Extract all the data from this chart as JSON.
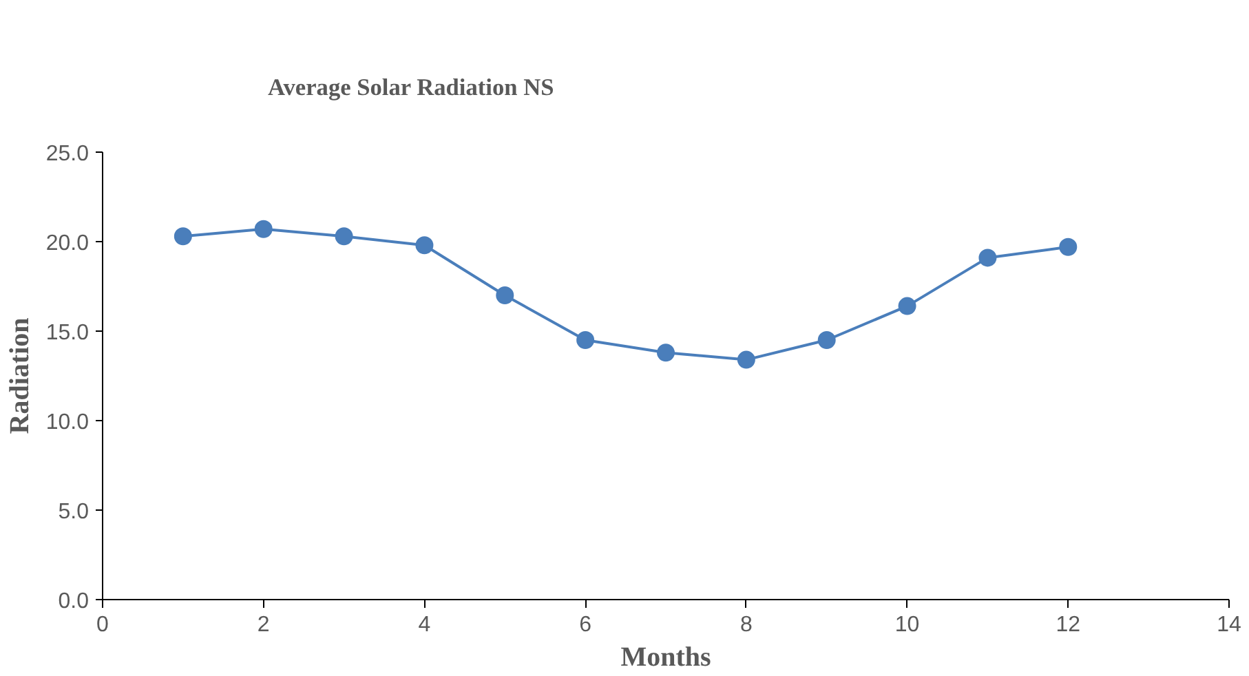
{
  "chart_data": {
    "type": "line",
    "title": "Average Solar Radiation NS",
    "xlabel": "Months",
    "ylabel": "Radiation",
    "x": [
      1,
      2,
      3,
      4,
      5,
      6,
      7,
      8,
      9,
      10,
      11,
      12
    ],
    "series": [
      {
        "color": "#4a7ebb",
        "values": [
          20.3,
          20.7,
          20.3,
          19.8,
          17.0,
          14.5,
          13.8,
          13.4,
          14.5,
          16.4,
          19.1,
          19.7
        ]
      }
    ],
    "xlim": [
      0,
      14
    ],
    "xticks": [
      0,
      2,
      4,
      6,
      8,
      10,
      12,
      14
    ],
    "ylim": [
      0,
      25
    ],
    "yticks": [
      {
        "value": 0,
        "label": "0.0"
      },
      {
        "value": 5,
        "label": "5.0"
      },
      {
        "value": 10,
        "label": "10.0"
      },
      {
        "value": 15,
        "label": "15.0"
      },
      {
        "value": 20,
        "label": "20.0"
      },
      {
        "value": 25,
        "label": "25.0"
      }
    ],
    "grid": false,
    "marker": "circle",
    "line_style": "solid"
  }
}
